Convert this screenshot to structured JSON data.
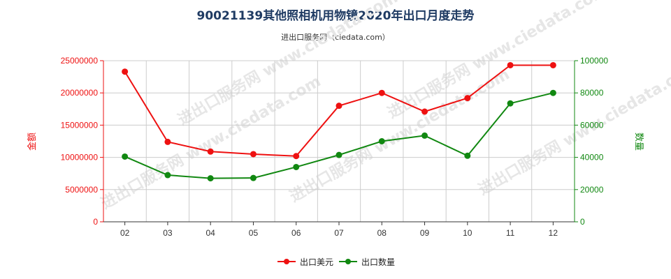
{
  "header": {
    "title": "90021139其他照相机用物镜2020年出口月度走势",
    "subtitle": "进出口服务网（ciedata.com）"
  },
  "watermark": "进出口服务网 www.ciedata.com",
  "colors": {
    "usd": "#ee1111",
    "qty": "#118811",
    "grid": "#cccccc",
    "axis": "#333333"
  },
  "chart_data": {
    "type": "line",
    "categories": [
      "02",
      "03",
      "04",
      "05",
      "06",
      "07",
      "08",
      "09",
      "10",
      "11",
      "12"
    ],
    "series": [
      {
        "name": "出口美元",
        "axis": "left",
        "values": [
          23300000,
          12400000,
          10900000,
          10500000,
          10200000,
          18000000,
          20000000,
          17100000,
          19200000,
          24300000,
          24300000
        ]
      },
      {
        "name": "出口数量",
        "axis": "right",
        "values": [
          40500,
          29000,
          27000,
          27200,
          34000,
          41500,
          50000,
          53500,
          41000,
          73500,
          80000
        ]
      }
    ],
    "y_left": {
      "label": "金额",
      "min": 0,
      "max": 25000000,
      "ticks": [
        "0",
        "5000000",
        "10000000",
        "15000000",
        "20000000",
        "25000000"
      ]
    },
    "y_right": {
      "label": "数量",
      "min": 0,
      "max": 100000,
      "ticks": [
        "0",
        "20000",
        "40000",
        "60000",
        "80000",
        "100000"
      ]
    },
    "grid": true,
    "legend_position": "bottom"
  }
}
